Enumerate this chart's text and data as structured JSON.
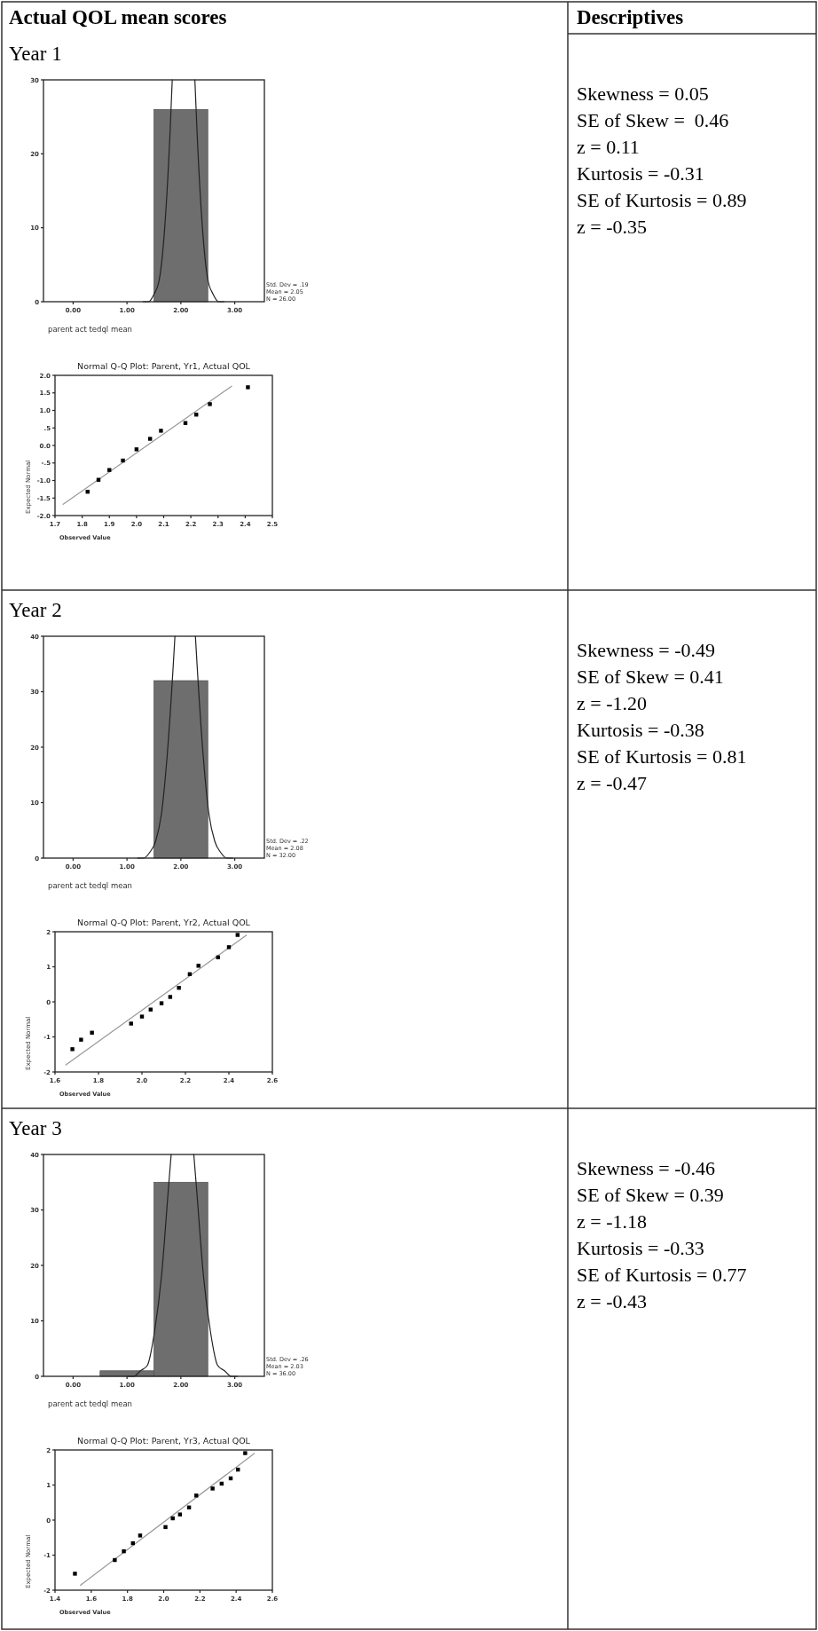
{
  "chart_data": [
    {
      "type": "other",
      "annotations": [
        "Actual QOL mean scores",
        "Descriptives"
      ]
    },
    {
      "type": "histogram",
      "title": "Year 1",
      "xlabel": "parent act tedql mean",
      "bins": [
        1.5,
        2.5
      ],
      "values": [
        26
      ],
      "color": "#6e6e6e",
      "xlim": [
        -0.55,
        3.55
      ],
      "xticks": [
        {
          "value": 0,
          "label": "0.00"
        },
        {
          "value": 1,
          "label": "1.00"
        },
        {
          "value": 2,
          "label": "2.00"
        },
        {
          "value": 3,
          "label": "3.00"
        }
      ],
      "ylim": [
        0,
        30
      ],
      "yticks": [
        0,
        10,
        20,
        30
      ],
      "annotations": [
        "Std. Dev = .19",
        "Mean = 2.05",
        "N = 26.00"
      ],
      "series": [
        {
          "type": "line",
          "color": "#222222",
          "x": [
            1.3,
            1.4,
            1.5,
            1.6,
            1.7,
            1.8,
            1.84,
            2.05,
            2.26,
            2.3,
            2.4,
            2.5,
            2.6,
            2.7,
            2.8
          ],
          "values": [
            0,
            0,
            1,
            3,
            10,
            23,
            30,
            null,
            30,
            23,
            10,
            3,
            1,
            0,
            0
          ]
        }
      ]
    },
    {
      "type": "scatter",
      "title": "Normal Q-Q Plot: Parent, Yr1, Actual QOL",
      "xlabel": "Observed Value",
      "ylabel": "Expected Normal",
      "marker": "square",
      "xlim": [
        1.7,
        2.5
      ],
      "xticks": [
        {
          "value": 1.7,
          "label": "1.7"
        },
        {
          "value": 1.8,
          "label": "1.8"
        },
        {
          "value": 1.9,
          "label": "1.9"
        },
        {
          "value": 2.0,
          "label": "2.0"
        },
        {
          "value": 2.1,
          "label": "2.1"
        },
        {
          "value": 2.2,
          "label": "2.2"
        },
        {
          "value": 2.3,
          "label": "2.3"
        },
        {
          "value": 2.4,
          "label": "2.4"
        },
        {
          "value": 2.5,
          "label": "2.5"
        }
      ],
      "ylim": [
        -2,
        2
      ],
      "yticks": [
        {
          "value": -2,
          "label": "-2.0"
        },
        {
          "value": -1.5,
          "label": "-1.5"
        },
        {
          "value": -1,
          "label": "-1.0"
        },
        {
          "value": -0.5,
          "label": "-.5"
        },
        {
          "value": 0,
          "label": "0.0"
        },
        {
          "value": 0.5,
          "label": ".5"
        },
        {
          "value": 1,
          "label": "1.0"
        },
        {
          "value": 1.5,
          "label": "1.5"
        },
        {
          "value": 2,
          "label": "2.0"
        }
      ],
      "series": [
        {
          "type": "scatter",
          "color": "#000000",
          "x": [
            1.82,
            1.86,
            1.9,
            1.95,
            2.0,
            2.05,
            2.09,
            2.18,
            2.22,
            2.27,
            2.41
          ],
          "values": [
            -1.32,
            -0.98,
            -0.7,
            -0.43,
            -0.11,
            0.19,
            0.42,
            0.64,
            0.88,
            1.18,
            1.66
          ]
        },
        {
          "type": "line",
          "marker": "none",
          "color": "#999999",
          "x": [
            1.73,
            2.35
          ],
          "values": [
            -1.68,
            1.69
          ]
        }
      ]
    },
    {
      "type": "other",
      "annotations": [
        "Skewness = 0.05",
        "SE of Skew =  0.46",
        "z = 0.11",
        "Kurtosis = -0.31",
        "SE of Kurtosis = 0.89",
        "z = -0.35"
      ]
    },
    {
      "type": "histogram",
      "title": "Year 2",
      "xlabel": "parent act tedql mean",
      "bins": [
        1.5,
        2.5
      ],
      "values": [
        32
      ],
      "color": "#6e6e6e",
      "xlim": [
        -0.55,
        3.55
      ],
      "xticks": [
        {
          "value": 0,
          "label": "0.00"
        },
        {
          "value": 1,
          "label": "1.00"
        },
        {
          "value": 2,
          "label": "2.00"
        },
        {
          "value": 3,
          "label": "3.00"
        }
      ],
      "ylim": [
        0,
        40
      ],
      "yticks": [
        0,
        10,
        20,
        30,
        40
      ],
      "annotations": [
        "Std. Dev = .22",
        "Mean = 2.08",
        "N = 32.00"
      ],
      "series": [
        {
          "type": "line",
          "color": "#222222",
          "x": [
            1.2,
            1.31,
            1.42,
            1.53,
            1.64,
            1.75,
            1.86,
            1.89,
            2.08,
            2.27,
            2.3,
            2.41,
            2.52,
            2.63,
            2.74,
            2.85,
            2.96
          ],
          "values": [
            0,
            0,
            1,
            3,
            8,
            19,
            35,
            40,
            null,
            40,
            35,
            19,
            8,
            3,
            1,
            0,
            0
          ]
        }
      ]
    },
    {
      "type": "scatter",
      "title": "Normal Q-Q Plot: Parent, Yr2, Actual QOL",
      "xlabel": "Observed Value",
      "ylabel": "Expected Normal",
      "marker": "square",
      "xlim": [
        1.6,
        2.6
      ],
      "xticks": [
        {
          "value": 1.6,
          "label": "1.6"
        },
        {
          "value": 1.8,
          "label": "1.8"
        },
        {
          "value": 2.0,
          "label": "2.0"
        },
        {
          "value": 2.2,
          "label": "2.2"
        },
        {
          "value": 2.4,
          "label": "2.4"
        },
        {
          "value": 2.6,
          "label": "2.6"
        }
      ],
      "ylim": [
        -2,
        2
      ],
      "yticks": [
        -2,
        -1,
        0,
        1,
        2
      ],
      "series": [
        {
          "type": "scatter",
          "color": "#000000",
          "x": [
            1.68,
            1.72,
            1.77,
            1.95,
            2.0,
            2.04,
            2.09,
            2.13,
            2.17,
            2.22,
            2.26,
            2.35,
            2.4,
            2.44
          ],
          "values": [
            -1.35,
            -1.08,
            -0.88,
            -0.62,
            -0.42,
            -0.22,
            -0.04,
            0.14,
            0.4,
            0.79,
            1.03,
            1.27,
            1.56,
            1.91
          ]
        },
        {
          "type": "line",
          "marker": "none",
          "color": "#999999",
          "x": [
            1.65,
            2.48
          ],
          "values": [
            -1.8,
            1.9
          ]
        }
      ]
    },
    {
      "type": "other",
      "annotations": [
        "Skewness = -0.49",
        "SE of Skew = 0.41",
        "z = -1.20",
        "Kurtosis = -0.38",
        "SE of Kurtosis = 0.81",
        "z = -0.47"
      ]
    },
    {
      "type": "histogram",
      "title": "Year 3",
      "xlabel": "parent act tedql mean",
      "bins": [
        0.5,
        1.5,
        2.5
      ],
      "values": [
        1,
        35
      ],
      "color": "#6e6e6e",
      "xlim": [
        -0.55,
        3.55
      ],
      "xticks": [
        {
          "value": 0,
          "label": "0.00"
        },
        {
          "value": 1,
          "label": "1.00"
        },
        {
          "value": 2,
          "label": "2.00"
        },
        {
          "value": 3,
          "label": "3.00"
        }
      ],
      "ylim": [
        0,
        40
      ],
      "yticks": [
        0,
        10,
        20,
        30,
        40
      ],
      "annotations": [
        "Std. Dev = .26",
        "Mean = 2.03",
        "N = 36.00"
      ],
      "series": [
        {
          "type": "line",
          "color": "#222222",
          "x": [
            1.01,
            1.12,
            1.25,
            1.38,
            1.51,
            1.64,
            1.77,
            1.82,
            2.03,
            2.24,
            2.29,
            2.42,
            2.55,
            2.68,
            2.81,
            2.94,
            3.05
          ],
          "values": [
            0,
            0,
            1,
            2,
            8,
            18,
            34,
            40,
            null,
            40,
            34,
            18,
            8,
            2,
            1,
            0,
            0
          ]
        }
      ]
    },
    {
      "type": "scatter",
      "title": "Normal Q-Q Plot: Parent, Yr3, Actual QOL",
      "xlabel": "Observed Value",
      "ylabel": "Expected Normal",
      "marker": "square",
      "xlim": [
        1.4,
        2.6
      ],
      "xticks": [
        {
          "value": 1.4,
          "label": "1.4"
        },
        {
          "value": 1.6,
          "label": "1.6"
        },
        {
          "value": 1.8,
          "label": "1.8"
        },
        {
          "value": 2.0,
          "label": "2.0"
        },
        {
          "value": 2.2,
          "label": "2.2"
        },
        {
          "value": 2.4,
          "label": "2.4"
        },
        {
          "value": 2.6,
          "label": "2.6"
        }
      ],
      "ylim": [
        -2,
        2
      ],
      "yticks": [
        -2,
        -1,
        0,
        1,
        2
      ],
      "series": [
        {
          "type": "scatter",
          "color": "#000000",
          "x": [
            1.51,
            1.73,
            1.78,
            1.83,
            1.87,
            2.01,
            2.05,
            2.09,
            2.14,
            2.18,
            2.27,
            2.32,
            2.37,
            2.41,
            2.45
          ],
          "values": [
            -1.53,
            -1.14,
            -0.89,
            -0.66,
            -0.44,
            -0.2,
            0.05,
            0.16,
            0.36,
            0.7,
            0.9,
            1.04,
            1.19,
            1.44,
            1.91
          ]
        },
        {
          "type": "line",
          "marker": "none",
          "color": "#999999",
          "x": [
            1.54,
            2.5
          ],
          "values": [
            -1.86,
            1.9
          ]
        }
      ]
    },
    {
      "type": "other",
      "annotations": [
        "Skewness = -0.46",
        "SE of Skew = 0.39",
        "z = -1.18",
        "Kurtosis = -0.33",
        "SE of Kurtosis = 0.77",
        "z = -0.43"
      ]
    }
  ]
}
